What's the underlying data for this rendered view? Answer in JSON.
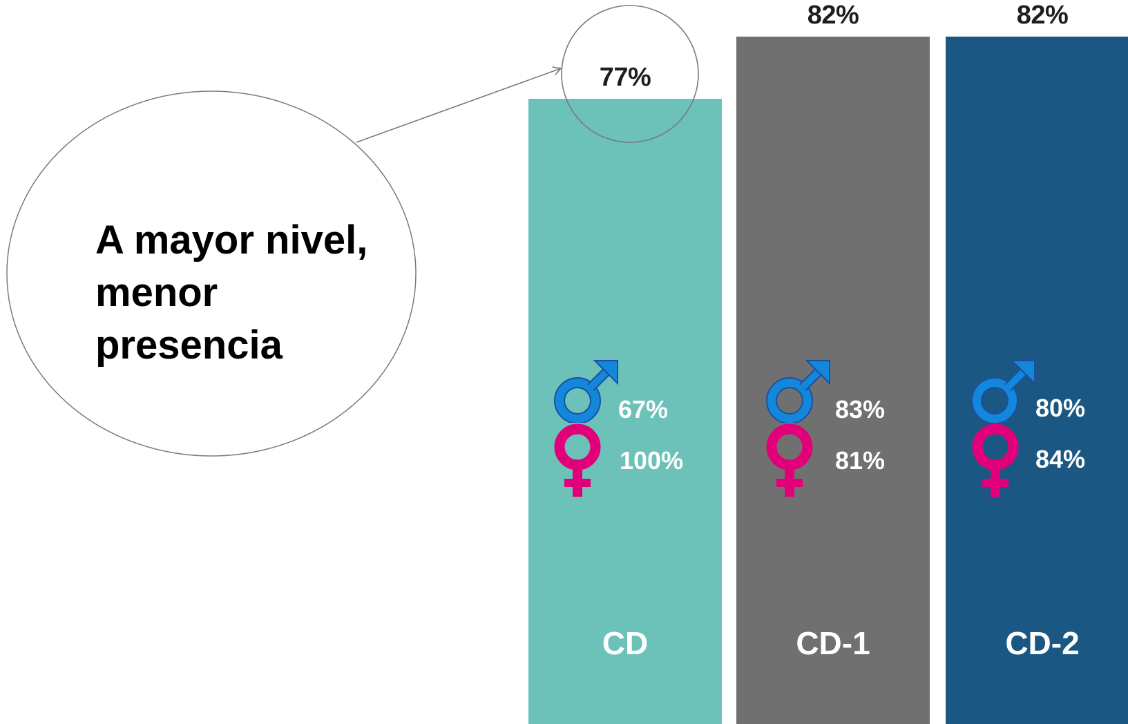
{
  "chart_data": {
    "type": "bar",
    "categories": [
      "CD",
      "CD-1",
      "CD-2"
    ],
    "values": [
      77,
      82,
      82
    ],
    "value_labels": [
      "77%",
      "82%",
      "82%"
    ],
    "series_breakdown": [
      {
        "male": "67%",
        "female": "100%"
      },
      {
        "male": "83%",
        "female": "81%"
      },
      {
        "male": "80%",
        "female": "84%"
      }
    ],
    "colors": [
      "#6cc1b9",
      "#707070",
      "#1a5883"
    ],
    "icon_colors": {
      "male": "#1387dc",
      "female": "#e2007a"
    },
    "annotation": {
      "lines": [
        "A mayor nivel,",
        "menor",
        "presencia"
      ],
      "target": "CD"
    }
  }
}
